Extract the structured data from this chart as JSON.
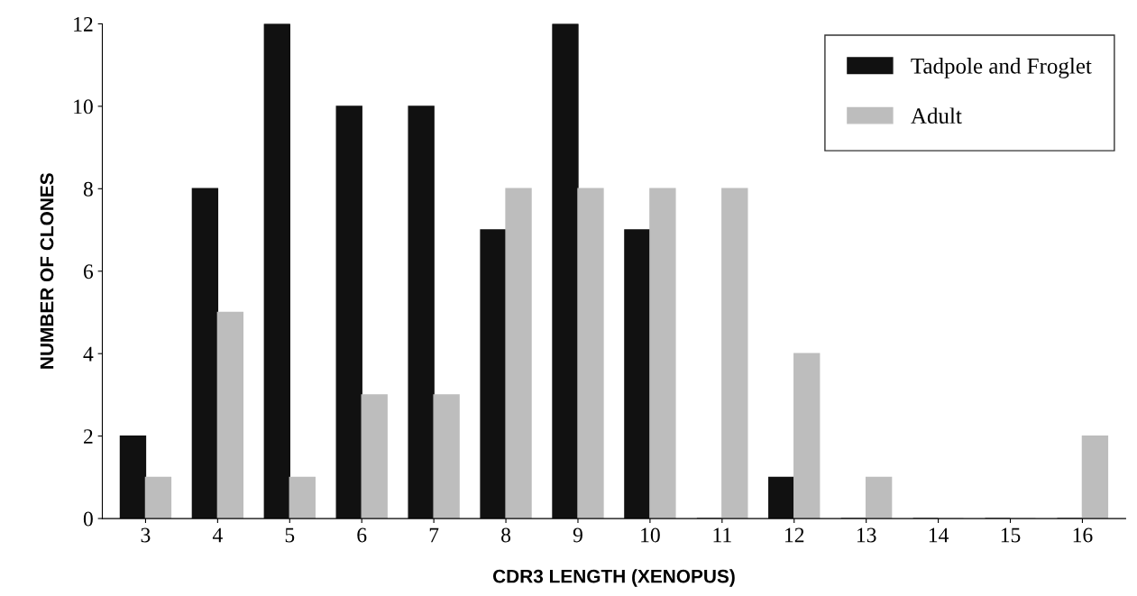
{
  "chart_data": {
    "type": "bar",
    "xlabel": "CDR3 LENGTH (XENOPUS)",
    "ylabel": "NUMBER OF CLONES",
    "categories": [
      "3",
      "4",
      "5",
      "6",
      "7",
      "8",
      "9",
      "10",
      "11",
      "12",
      "13",
      "14",
      "15",
      "16"
    ],
    "series": [
      {
        "name": "Tadpole and Froglet",
        "color": "#111111",
        "values": [
          2,
          8,
          12,
          10,
          10,
          7,
          12,
          7,
          0,
          1,
          0,
          0,
          0,
          0
        ]
      },
      {
        "name": "Adult",
        "color": "#bdbdbd",
        "values": [
          1,
          5,
          1,
          3,
          3,
          8,
          8,
          8,
          8,
          4,
          1,
          0,
          0,
          2
        ]
      }
    ],
    "ylim": [
      0,
      12
    ],
    "yticks": [
      0,
      2,
      4,
      6,
      8,
      10,
      12
    ],
    "grid": false,
    "legend": "top right"
  }
}
